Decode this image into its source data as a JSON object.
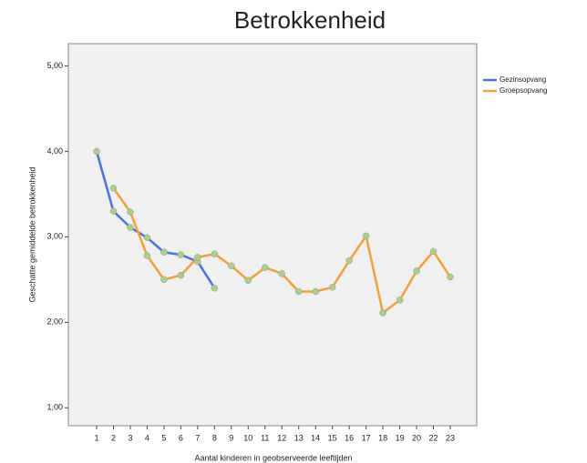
{
  "chart_data": {
    "type": "line",
    "title": "Betrokkenheid",
    "y_label": "Geschatte gemiddelde betrokkenheid",
    "x_label": "Aantal kinderen in geobserveerde leeftijden",
    "categories": [
      "1",
      "2",
      "3",
      "4",
      "5",
      "6",
      "7",
      "8",
      "9",
      "10",
      "11",
      "12",
      "13",
      "14",
      "15",
      "16",
      "17",
      "18",
      "19",
      "20",
      "22",
      "23"
    ],
    "series": [
      {
        "name": "Gezinsopvang",
        "color": "#4a72e8",
        "values": [
          4.0,
          3.3,
          3.11,
          2.99,
          2.82,
          2.79,
          2.71,
          2.4,
          null,
          null,
          null,
          null,
          null,
          null,
          null,
          null,
          null,
          null,
          null,
          null,
          null,
          null
        ]
      },
      {
        "name": "Groepsopvang",
        "color": "#f5a030",
        "values": [
          null,
          3.57,
          3.29,
          2.78,
          2.5,
          2.55,
          2.76,
          2.8,
          2.66,
          2.49,
          2.64,
          2.57,
          2.36,
          2.36,
          2.41,
          2.72,
          3.01,
          2.11,
          2.26,
          2.6,
          2.83,
          2.53
        ]
      }
    ],
    "marker_color": "#a9cf8a",
    "ylim": [
      0.79,
      5.26
    ],
    "yticks": [
      {
        "value": 1,
        "label": "1,00"
      },
      {
        "value": 2,
        "label": "2,00"
      },
      {
        "value": 3,
        "label": "3,00"
      },
      {
        "value": 4,
        "label": "4,00"
      },
      {
        "value": 5,
        "label": "5,00"
      }
    ],
    "legend": "right"
  }
}
